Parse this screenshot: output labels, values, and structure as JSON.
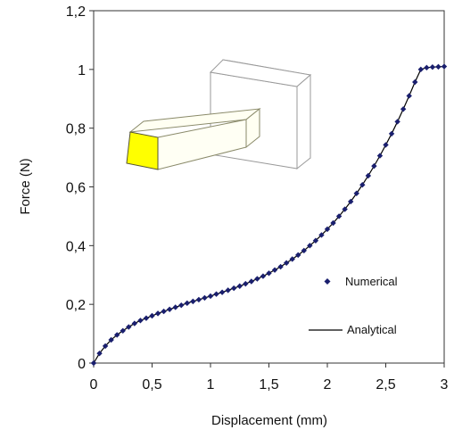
{
  "chart_data": {
    "type": "line",
    "title": "",
    "xlabel": "Displacement (mm)",
    "ylabel": "Force (N)",
    "xlim": [
      0,
      3
    ],
    "ylim": [
      0,
      1.2
    ],
    "x_ticks": [
      "0",
      "0,5",
      "1",
      "1,5",
      "2",
      "2,5",
      "3"
    ],
    "y_ticks": [
      "0",
      "0,2",
      "0,4",
      "0,6",
      "0,8",
      "1",
      "1,2"
    ],
    "grid": false,
    "legend_position": "right",
    "series": [
      {
        "name": "Numerical",
        "style": "markers",
        "color": "#1a1f6e",
        "x": [
          0,
          0.05,
          0.1,
          0.15,
          0.2,
          0.25,
          0.3,
          0.35,
          0.4,
          0.45,
          0.5,
          0.55,
          0.6,
          0.65,
          0.7,
          0.75,
          0.8,
          0.85,
          0.9,
          0.95,
          1.0,
          1.05,
          1.1,
          1.15,
          1.2,
          1.25,
          1.3,
          1.35,
          1.4,
          1.45,
          1.5,
          1.55,
          1.6,
          1.65,
          1.7,
          1.75,
          1.8,
          1.85,
          1.9,
          1.95,
          2.0,
          2.05,
          2.1,
          2.15,
          2.2,
          2.25,
          2.3,
          2.35,
          2.4,
          2.45,
          2.5,
          2.55,
          2.6,
          2.65,
          2.7,
          2.75,
          2.8,
          2.85,
          2.9,
          2.95,
          3.0
        ],
        "y": [
          0.0,
          0.033,
          0.058,
          0.079,
          0.096,
          0.11,
          0.123,
          0.135,
          0.145,
          0.153,
          0.161,
          0.169,
          0.176,
          0.183,
          0.19,
          0.197,
          0.204,
          0.21,
          0.216,
          0.222,
          0.228,
          0.235,
          0.241,
          0.248,
          0.255,
          0.262,
          0.27,
          0.278,
          0.287,
          0.296,
          0.306,
          0.317,
          0.328,
          0.341,
          0.354,
          0.368,
          0.383,
          0.4,
          0.417,
          0.436,
          0.456,
          0.477,
          0.5,
          0.524,
          0.55,
          0.578,
          0.607,
          0.638,
          0.671,
          0.706,
          0.743,
          0.781,
          0.822,
          0.865,
          0.91,
          0.957,
          1.0,
          1.006,
          1.008,
          1.009,
          1.01
        ]
      },
      {
        "name": "Analytical",
        "style": "line",
        "color": "#000000",
        "x": [
          0,
          0.05,
          0.1,
          0.15,
          0.2,
          0.25,
          0.3,
          0.35,
          0.4,
          0.45,
          0.5,
          0.55,
          0.6,
          0.65,
          0.7,
          0.75,
          0.8,
          0.85,
          0.9,
          0.95,
          1.0,
          1.05,
          1.1,
          1.15,
          1.2,
          1.25,
          1.3,
          1.35,
          1.4,
          1.45,
          1.5,
          1.55,
          1.6,
          1.65,
          1.7,
          1.75,
          1.8,
          1.85,
          1.9,
          1.95,
          2.0,
          2.05,
          2.1,
          2.15,
          2.2,
          2.25,
          2.3,
          2.35,
          2.4,
          2.45,
          2.5,
          2.55,
          2.6,
          2.65,
          2.7,
          2.75,
          2.8,
          2.85,
          2.9,
          2.95,
          3.0
        ],
        "y": [
          0.0,
          0.033,
          0.058,
          0.079,
          0.096,
          0.11,
          0.123,
          0.135,
          0.145,
          0.153,
          0.161,
          0.169,
          0.176,
          0.183,
          0.19,
          0.197,
          0.204,
          0.21,
          0.216,
          0.222,
          0.228,
          0.235,
          0.241,
          0.248,
          0.255,
          0.262,
          0.27,
          0.278,
          0.287,
          0.296,
          0.306,
          0.317,
          0.328,
          0.341,
          0.354,
          0.368,
          0.383,
          0.4,
          0.417,
          0.436,
          0.456,
          0.477,
          0.5,
          0.524,
          0.55,
          0.578,
          0.607,
          0.638,
          0.671,
          0.706,
          0.743,
          0.781,
          0.822,
          0.865,
          0.91,
          0.957,
          1.0,
          1.006,
          1.008,
          1.009,
          1.01
        ]
      }
    ],
    "inset_figure": {
      "description_icon": "cantilever-beam-3d-icon",
      "beam_end_color": "#ffff00",
      "beam_side_color": "#fffff0",
      "wall_color": "#ffffff"
    }
  }
}
